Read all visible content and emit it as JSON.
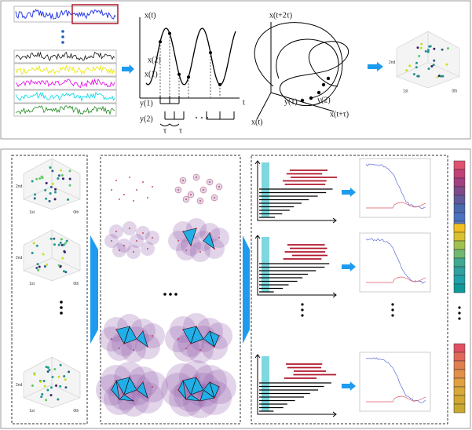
{
  "top": {
    "series_plot": {
      "y_axis": "x(t)",
      "x_axis": "t",
      "points": [
        "x(1)",
        "x(2)"
      ],
      "vectors": [
        "y(1)",
        "y(2)"
      ],
      "delay": "τ"
    },
    "embedding": {
      "z_axis": "x(t+2τ)",
      "y_axis": "x(t+τ)",
      "x_axis": "x(t)",
      "points": [
        "y(1)",
        "y(2)"
      ]
    },
    "scatter_axes": [
      "2nd",
      "1st",
      "0th"
    ]
  }
}
